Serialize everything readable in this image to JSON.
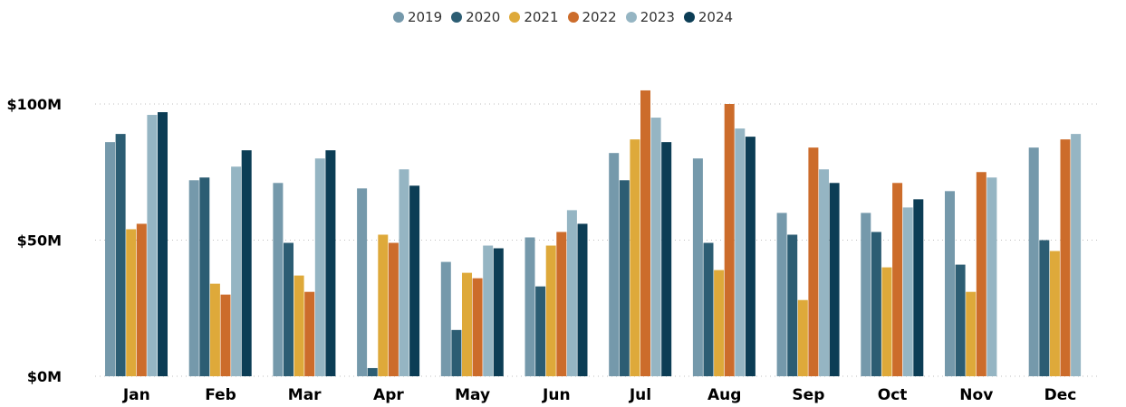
{
  "chart_data": {
    "type": "bar",
    "title": "",
    "xlabel": "",
    "ylabel": "",
    "ylim": [
      0,
      100
    ],
    "y_unit": "$M",
    "y_ticks": [
      {
        "value": 0,
        "label": "$0M"
      },
      {
        "value": 50,
        "label": "$50M"
      },
      {
        "value": 100,
        "label": "$100M"
      }
    ],
    "grid": "horizontal-dotted",
    "legend_position": "top-center",
    "categories": [
      "Jan",
      "Feb",
      "Mar",
      "Apr",
      "May",
      "Jun",
      "Jul",
      "Aug",
      "Sep",
      "Oct",
      "Nov",
      "Dec"
    ],
    "series": [
      {
        "name": "2019",
        "color": "#7599AB",
        "values": [
          86,
          72,
          71,
          69,
          42,
          51,
          82,
          80,
          60,
          60,
          68,
          84
        ]
      },
      {
        "name": "2020",
        "color": "#2C5D73",
        "values": [
          89,
          73,
          49,
          3,
          17,
          33,
          72,
          49,
          52,
          53,
          41,
          50
        ]
      },
      {
        "name": "2021",
        "color": "#DEA93A",
        "values": [
          54,
          34,
          37,
          52,
          38,
          48,
          87,
          39,
          28,
          40,
          31,
          46
        ]
      },
      {
        "name": "2022",
        "color": "#CC6C2B",
        "values": [
          56,
          30,
          31,
          49,
          36,
          53,
          105,
          100,
          84,
          71,
          75,
          87
        ]
      },
      {
        "name": "2023",
        "color": "#95B5C3",
        "values": [
          96,
          77,
          80,
          76,
          48,
          61,
          95,
          91,
          76,
          62,
          73,
          89
        ]
      },
      {
        "name": "2024",
        "color": "#0C3D55",
        "values": [
          97,
          83,
          83,
          70,
          47,
          56,
          86,
          88,
          71,
          65,
          null,
          null
        ]
      }
    ]
  }
}
